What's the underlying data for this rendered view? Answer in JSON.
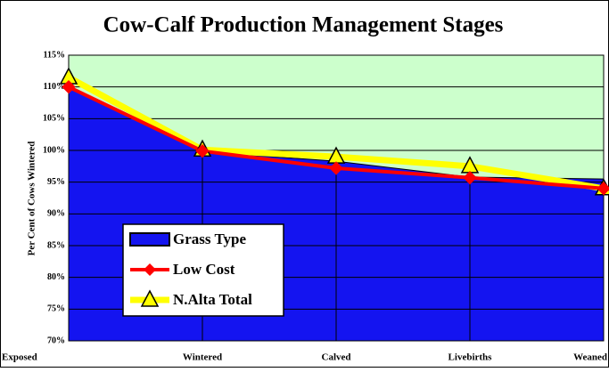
{
  "chart_data": {
    "type": "area-line",
    "title": "Cow-Calf Production Management Stages",
    "y_label": "Per Cent of Cows Wintered",
    "categories": [
      "Exposed",
      "Wintered",
      "Calved",
      "Livebirths",
      "Weaned"
    ],
    "series": [
      {
        "name": "Grass Type",
        "color": "#1414f0",
        "kind": "area",
        "values": [
          110,
          99.8,
          98.3,
          95.8,
          95.5
        ]
      },
      {
        "name": "Low Cost",
        "color": "#ff0000",
        "kind": "line",
        "marker": "diamond",
        "values": [
          110,
          99.9,
          97.2,
          95.7,
          94
        ]
      },
      {
        "name": "N.Alta Total",
        "color": "#ffff00",
        "kind": "line",
        "marker": "triangle",
        "values": [
          111.5,
          100.1,
          99,
          97.5,
          94
        ]
      }
    ],
    "ylim": [
      70,
      115
    ],
    "yticks": [
      {
        "value": 70,
        "label": "70%"
      },
      {
        "value": 75,
        "label": "75%"
      },
      {
        "value": 80,
        "label": "80%"
      },
      {
        "value": 85,
        "label": "85%"
      },
      {
        "value": 90,
        "label": "90%"
      },
      {
        "value": 95,
        "label": "95%"
      },
      {
        "value": 100,
        "label": "100%"
      },
      {
        "value": 105,
        "label": "105%"
      },
      {
        "value": 110,
        "label": "110%"
      },
      {
        "value": 115,
        "label": "115%"
      }
    ],
    "grid": true,
    "plot_background": "#ccffcc",
    "legend": "lower left"
  }
}
